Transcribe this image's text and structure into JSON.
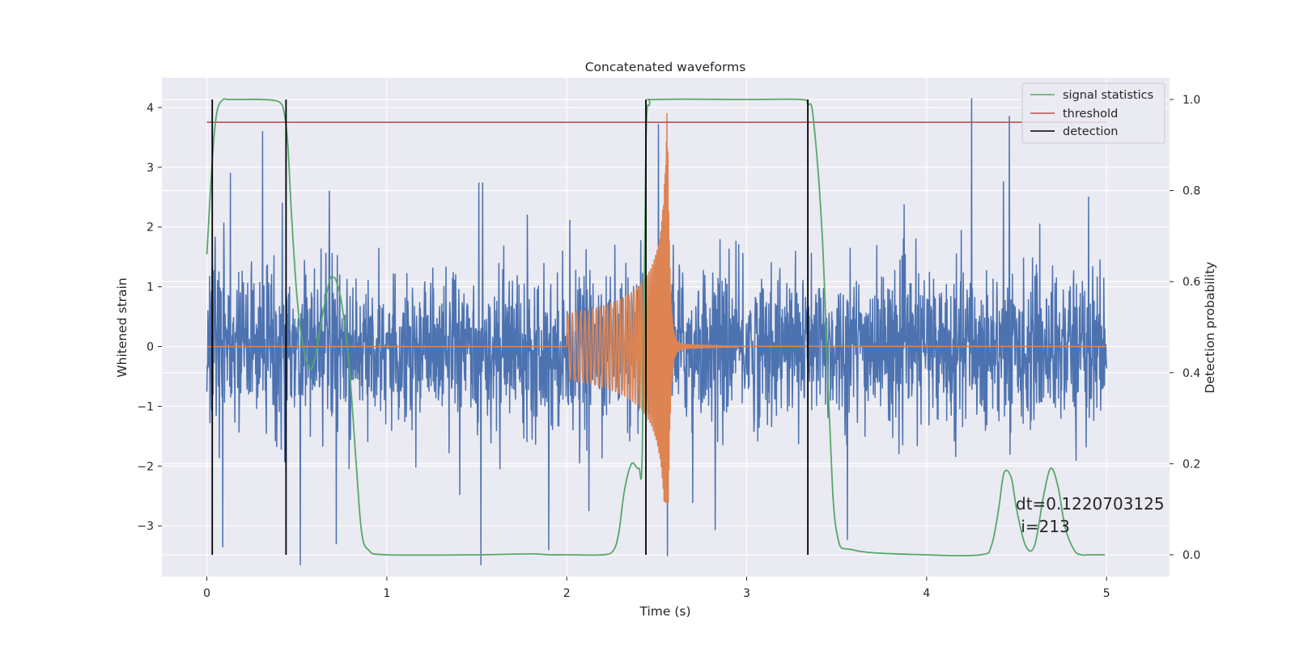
{
  "chart_data": {
    "type": "line",
    "title": "Concatenated waveforms",
    "xlabel": "Time (s)",
    "ylabel": "Whitened strain",
    "y2label": "Detection probability",
    "xlim": [
      -0.25,
      5.35
    ],
    "ylim": [
      -3.85,
      4.5
    ],
    "y2lim": [
      -0.048,
      1.048
    ],
    "xticks": [
      0,
      1,
      2,
      3,
      4,
      5
    ],
    "yticks": [
      -3,
      -2,
      -1,
      0,
      1,
      2,
      3,
      4
    ],
    "y2ticks": [
      0.0,
      0.2,
      0.4,
      0.6,
      0.8,
      1.0
    ],
    "grid": true,
    "legend_position": "top-right",
    "colors": {
      "strain": "#4c72b0",
      "template": "#dd8452",
      "signal_statistics": "#55a868",
      "threshold": "#c44e52",
      "detection": "#000000",
      "background": "#eaeaf2"
    },
    "series": [
      {
        "name": "",
        "kind": "noise",
        "axis": "left",
        "x_range": [
          0,
          5
        ],
        "sigma": 0.62,
        "spikes": [
          {
            "x": 0.31,
            "y": 3.6
          },
          {
            "x": 0.13,
            "y": 2.9
          },
          {
            "x": 0.42,
            "y": 2.4
          },
          {
            "x": 0.72,
            "y": -3.3
          },
          {
            "x": 1.9,
            "y": -3.4
          },
          {
            "x": 2.56,
            "y": -3.5
          },
          {
            "x": 4.25,
            "y": 4.15
          },
          {
            "x": 4.46,
            "y": 3.85
          },
          {
            "x": 4.9,
            "y": 2.5
          },
          {
            "x": 0.68,
            "y": 2.6
          },
          {
            "x": 1.78,
            "y": 2.2
          }
        ]
      },
      {
        "name": "",
        "kind": "chirp",
        "axis": "left",
        "start": 2.0,
        "merger": 2.56,
        "amp_start": 0.55,
        "amp_peak": 3.95,
        "amp_min": -2.6,
        "ringdown_end": 2.95
      },
      {
        "name": "signal statistics",
        "axis": "right",
        "x": [
          0.0,
          0.02,
          0.04,
          0.06,
          0.09,
          0.12,
          0.2,
          0.3,
          0.4,
          0.43,
          0.45,
          0.47,
          0.5,
          0.53,
          0.57,
          0.6,
          0.64,
          0.68,
          0.7,
          0.72,
          0.75,
          0.79,
          0.83,
          0.86,
          0.9,
          1.0,
          1.5,
          1.8,
          1.9,
          2.0,
          2.2,
          2.26,
          2.29,
          2.32,
          2.36,
          2.4,
          2.42,
          2.44,
          2.46,
          2.5,
          3.0,
          3.3,
          3.34,
          3.37,
          3.42,
          3.46,
          3.5,
          3.6,
          4.0,
          4.3,
          4.36,
          4.4,
          4.43,
          4.47,
          4.5,
          4.55,
          4.6,
          4.65,
          4.69,
          4.73,
          4.77,
          4.82,
          4.86,
          4.9,
          4.99
        ],
        "y": [
          0.66,
          0.8,
          0.92,
          0.98,
          1.0,
          1.0,
          1.0,
          1.0,
          0.995,
          0.97,
          0.9,
          0.75,
          0.57,
          0.47,
          0.41,
          0.43,
          0.52,
          0.6,
          0.61,
          0.6,
          0.55,
          0.42,
          0.2,
          0.05,
          0.01,
          0.0,
          0.0,
          0.002,
          0.0,
          0.0,
          0.0,
          0.01,
          0.05,
          0.14,
          0.2,
          0.19,
          0.23,
          0.9,
          0.99,
          1.0,
          1.0,
          1.0,
          0.99,
          0.96,
          0.7,
          0.3,
          0.05,
          0.01,
          0.0,
          0.0,
          0.02,
          0.1,
          0.18,
          0.17,
          0.1,
          0.02,
          0.02,
          0.13,
          0.19,
          0.15,
          0.06,
          0.01,
          0.0,
          0.0,
          0.0
        ]
      },
      {
        "name": "threshold",
        "axis": "right",
        "x": [
          0,
          5
        ],
        "y": [
          0.95,
          0.95
        ]
      },
      {
        "name": "detection",
        "axis": "right",
        "x": [
          0.03,
          0.44,
          2.44,
          3.34
        ],
        "y_range": [
          0.0,
          1.0
        ]
      }
    ],
    "annotation": "dt=0.1220703125\n i=213"
  }
}
